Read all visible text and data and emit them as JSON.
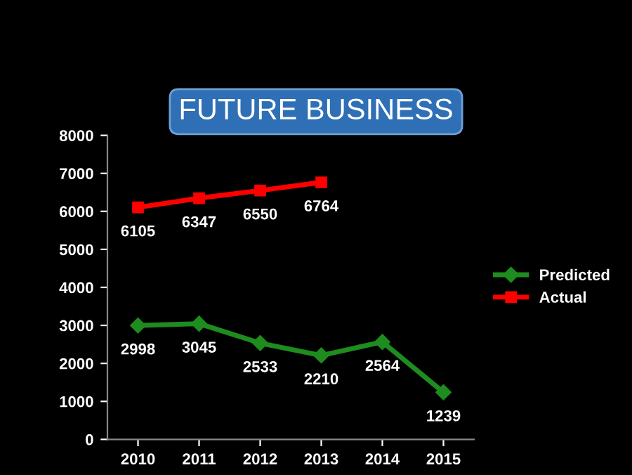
{
  "chart_data": {
    "type": "line",
    "title": "FUTURE BUSINESS",
    "categories": [
      "2010",
      "2011",
      "2012",
      "2013",
      "2014",
      "2015"
    ],
    "series": [
      {
        "name": "Predicted",
        "color": "#1e8c1e",
        "marker": "diamond",
        "values": [
          2998,
          3045,
          2533,
          2210,
          2564,
          1239
        ]
      },
      {
        "name": "Actual",
        "color": "#ff0000",
        "marker": "square",
        "values": [
          6105,
          6347,
          6550,
          6764,
          null,
          null
        ]
      }
    ],
    "ylim": [
      0,
      8000
    ],
    "yticks": [
      0,
      1000,
      2000,
      3000,
      4000,
      5000,
      6000,
      7000,
      8000
    ],
    "data_labels": true,
    "legend": "right",
    "grid": false,
    "line_style": "solid"
  }
}
